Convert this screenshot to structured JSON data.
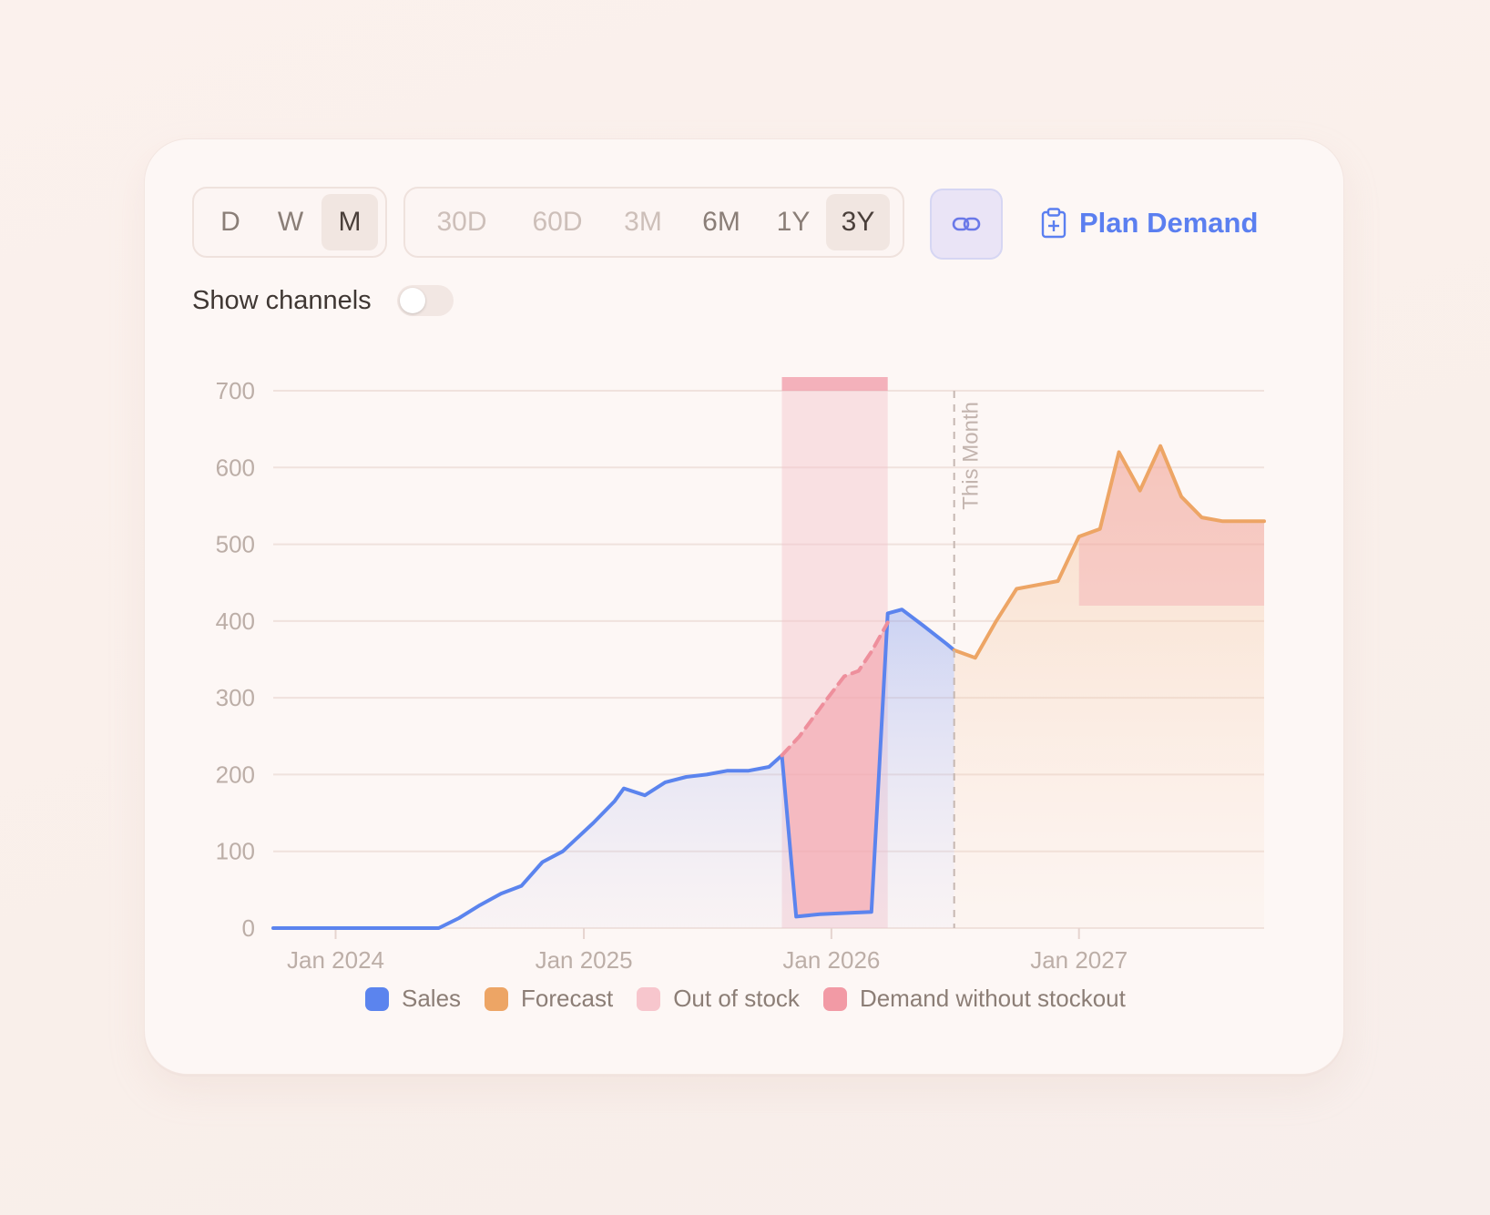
{
  "granularity": {
    "options": [
      "D",
      "W",
      "M"
    ],
    "selected": "M"
  },
  "range": {
    "options": [
      "30D",
      "60D",
      "3M",
      "6M",
      "1Y",
      "3Y"
    ],
    "selected": "3Y"
  },
  "plan_demand": "Plan Demand",
  "show_channels": {
    "label": "Show channels",
    "on": false
  },
  "colors": {
    "sales": "#5b84ee",
    "forecast": "#eda565",
    "out_of_stock": "#f4b3bd",
    "demand_without_stockout": "#f29aa5"
  },
  "chart_data": {
    "type": "area",
    "x_axis": {
      "ticks": [
        "Jan 2024",
        "Jan 2025",
        "Jan 2026",
        "Jan 2027"
      ],
      "range": [
        "2023-10-01",
        "2027-10-01"
      ]
    },
    "y_axis": {
      "ticks": [
        0,
        100,
        200,
        300,
        400,
        500,
        600,
        700
      ],
      "ylim": [
        0,
        700
      ]
    },
    "grid": true,
    "legend_position": "bottom",
    "marker": {
      "label": "This Month",
      "date": "2026-07-01"
    },
    "series": [
      {
        "name": "Sales",
        "points": [
          [
            "2023-10-01",
            0
          ],
          [
            "2024-01-01",
            0
          ],
          [
            "2024-04-01",
            0
          ],
          [
            "2024-06-01",
            0
          ],
          [
            "2024-07-01",
            13
          ],
          [
            "2024-08-01",
            30
          ],
          [
            "2024-09-01",
            45
          ],
          [
            "2024-10-01",
            55
          ],
          [
            "2024-11-01",
            86
          ],
          [
            "2024-12-01",
            100
          ],
          [
            "2025-01-15",
            137
          ],
          [
            "2025-02-15",
            165
          ],
          [
            "2025-03-01",
            182
          ],
          [
            "2025-04-01",
            173
          ],
          [
            "2025-05-01",
            190
          ],
          [
            "2025-06-01",
            197
          ],
          [
            "2025-07-01",
            200
          ],
          [
            "2025-08-01",
            205
          ],
          [
            "2025-09-01",
            205
          ],
          [
            "2025-10-01",
            210
          ],
          [
            "2025-10-20",
            225
          ],
          [
            "2025-11-10",
            15
          ],
          [
            "2025-12-15",
            18
          ],
          [
            "2026-02-01",
            20
          ],
          [
            "2026-03-01",
            21
          ],
          [
            "2026-03-25",
            410
          ],
          [
            "2026-04-15",
            415
          ],
          [
            "2026-05-15",
            395
          ],
          [
            "2026-06-20",
            370
          ],
          [
            "2026-07-01",
            362
          ]
        ]
      },
      {
        "name": "Forecast",
        "points": [
          [
            "2026-07-01",
            362
          ],
          [
            "2026-08-01",
            352
          ],
          [
            "2026-09-01",
            400
          ],
          [
            "2026-10-01",
            442
          ],
          [
            "2026-11-01",
            447
          ],
          [
            "2026-12-01",
            452
          ],
          [
            "2027-01-01",
            510
          ],
          [
            "2027-02-01",
            520
          ],
          [
            "2027-03-01",
            620
          ],
          [
            "2027-04-01",
            570
          ],
          [
            "2027-05-01",
            628
          ],
          [
            "2027-06-01",
            562
          ],
          [
            "2027-07-01",
            535
          ],
          [
            "2027-08-01",
            530
          ],
          [
            "2027-10-01",
            530
          ]
        ]
      },
      {
        "name": "Out of stock",
        "start": "2025-10-20",
        "end": "2026-03-25"
      },
      {
        "name": "Demand without stockout",
        "points": [
          [
            "2025-10-20",
            225
          ],
          [
            "2025-11-15",
            250
          ],
          [
            "2025-12-20",
            292
          ],
          [
            "2026-01-20",
            328
          ],
          [
            "2026-02-10",
            335
          ],
          [
            "2026-03-01",
            360
          ],
          [
            "2026-03-25",
            398
          ]
        ]
      }
    ]
  }
}
